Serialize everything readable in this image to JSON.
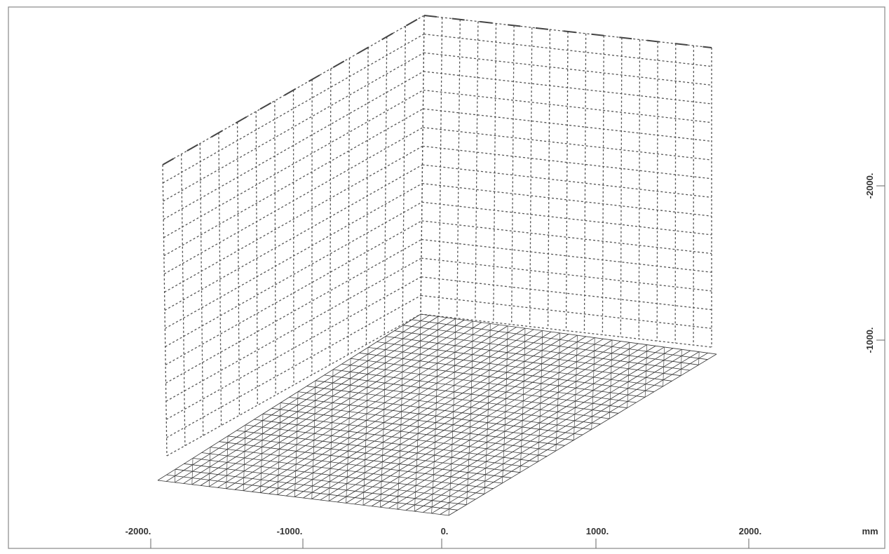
{
  "x_axis": {
    "ticks": [
      "-2000.",
      "-1000.",
      "0.",
      "1000.",
      "2000."
    ],
    "unit": "mm"
  },
  "y_axis": {
    "ticks": [
      "-2000.",
      "-1000."
    ]
  }
}
